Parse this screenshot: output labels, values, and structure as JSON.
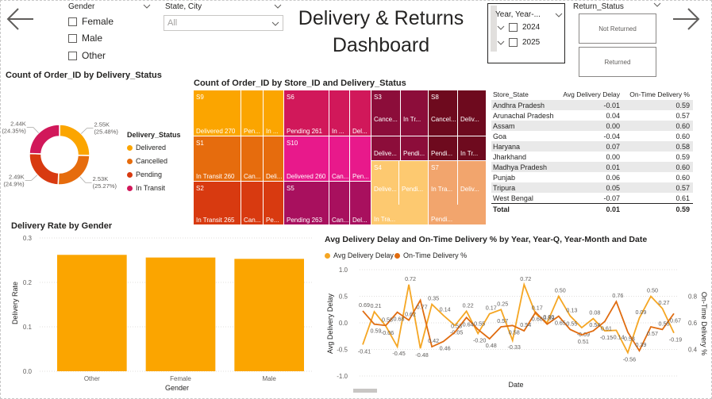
{
  "colors": {
    "delivered": "#FBA500",
    "cancelled": "#E66C0D",
    "pending": "#D83A10",
    "in_transit": "#D1185A",
    "bar": "#FBA500",
    "line1": "#F5A623",
    "line2": "#E06C10"
  },
  "nav": {
    "back_icon": "arrow-left-icon",
    "forward_icon": "arrow-right-icon"
  },
  "gender_slicer": {
    "title": "Gender",
    "options": [
      "Female",
      "Male",
      "Other"
    ]
  },
  "state_slicer": {
    "title": "State, City",
    "value": "All"
  },
  "title": {
    "line1": "Delivery & Returns",
    "line2": "Dashboard"
  },
  "year_slicer": {
    "title": "Year, Year-...",
    "options": [
      "2024",
      "2025"
    ]
  },
  "return_slicer": {
    "title": "Return_Status",
    "options": [
      "Not Returned",
      "Returned"
    ]
  },
  "donut": {
    "title": "Count of Order_ID by Delivery_Status",
    "legend_title": "Delivery_Status",
    "items": [
      {
        "name": "Delivered",
        "count": "2.55K",
        "pct": "(25.48%)",
        "value": 25.48
      },
      {
        "name": "Cancelled",
        "count": "2.53K",
        "pct": "(25.27%)",
        "value": 25.27
      },
      {
        "name": "Pending",
        "count": "2.49K",
        "pct": "(24.9%)",
        "value": 24.9
      },
      {
        "name": "In Transit",
        "count": "2.44K",
        "pct": "(24.35%)",
        "value": 24.35
      }
    ]
  },
  "treemap": {
    "title": "Count of Order_ID by Store_ID and Delivery_Status",
    "stores": [
      {
        "id": "S9",
        "labels": [
          "Delivered 270",
          "Pen...",
          "In ..."
        ]
      },
      {
        "id": "S6",
        "labels": [
          "Pending 261",
          "In ...",
          "Del..."
        ]
      },
      {
        "id": "S3",
        "labels": [
          "Cance...",
          "In Tr...",
          "Delive...",
          "Pendi..."
        ]
      },
      {
        "id": "S8",
        "labels": [
          "Cancel...",
          "Deliv...",
          "Pendi...",
          "In Tr..."
        ]
      },
      {
        "id": "S1",
        "labels": [
          "In Transit 260",
          "Can...",
          "Deli..."
        ]
      },
      {
        "id": "S10",
        "labels": [
          "Delivered 260",
          "Can...",
          "Pen..."
        ]
      },
      {
        "id": "S4",
        "labels": [
          "Delive...",
          "Pendi...",
          "In Tra..."
        ]
      },
      {
        "id": "S7",
        "labels": [
          "In Tra...",
          "Deliv...",
          "Pendi..."
        ]
      },
      {
        "id": "S2",
        "labels": [
          "In Transit 265",
          "Can...",
          "Pe..."
        ]
      },
      {
        "id": "S5",
        "labels": [
          "Pending 263",
          "Can...",
          "Del..."
        ]
      }
    ]
  },
  "table": {
    "headers": [
      "Store_State",
      "Avg Delivery Delay",
      "On-Time Delivery %"
    ],
    "rows": [
      [
        "Andhra Pradesh",
        "-0.01",
        "0.59"
      ],
      [
        "Arunachal Pradesh",
        "0.04",
        "0.57"
      ],
      [
        "Assam",
        "0.00",
        "0.60"
      ],
      [
        "Goa",
        "-0.04",
        "0.60"
      ],
      [
        "Haryana",
        "0.07",
        "0.58"
      ],
      [
        "Jharkhand",
        "0.00",
        "0.59"
      ],
      [
        "Madhya Pradesh",
        "0.01",
        "0.60"
      ],
      [
        "Punjab",
        "0.06",
        "0.60"
      ],
      [
        "Tripura",
        "0.05",
        "0.57"
      ],
      [
        "West Bengal",
        "-0.07",
        "0.61"
      ]
    ],
    "total": [
      "Total",
      "0.01",
      "0.59"
    ]
  },
  "chart_data": [
    {
      "type": "bar",
      "title": "Delivery Rate by Gender",
      "categories": [
        "Other",
        "Female",
        "Male"
      ],
      "values": [
        0.262,
        0.256,
        0.253
      ],
      "xlabel": "Gender",
      "ylabel": "Delivery Rate",
      "ylim": [
        0,
        0.3
      ],
      "yticks": [
        "0.0",
        "0.1",
        "0.2",
        "0.3"
      ]
    },
    {
      "type": "line",
      "title": "Avg Delivery Delay and On-Time Delivery % by Year, Year-Q, Year-Month and Date",
      "xlabel": "Date",
      "ylabel": "Avg Delivery Delay",
      "y2label": "On-Time Delivery %",
      "ylim": [
        -1.0,
        1.0
      ],
      "yticks": [
        "-1.0",
        "-0.5",
        "0.0",
        "0.5",
        "1.0"
      ],
      "y2ticks": [
        "0.4",
        "0.6",
        "0.8"
      ],
      "series": [
        {
          "name": "Avg Delivery Delay",
          "values": [
            -0.41,
            0.21,
            -0.06,
            -0.45,
            0.72,
            -0.48,
            0.35,
            0.14,
            -0.05,
            0.22,
            -0.2,
            0.17,
            0.25,
            -0.33,
            0.72,
            0.17,
            0.0,
            0.5,
            0.13,
            -0.09,
            0.08,
            -0.15,
            -0.14,
            -0.56,
            0.09,
            0.5,
            0.27,
            -0.19
          ]
        },
        {
          "name": "On-Time Delivery %",
          "values": [
            0.69,
            0.59,
            0.58,
            0.68,
            0.62,
            0.77,
            0.42,
            0.46,
            0.53,
            0.64,
            0.55,
            0.48,
            0.57,
            0.58,
            0.54,
            0.68,
            0.59,
            0.65,
            0.55,
            0.51,
            0.54,
            0.61,
            0.76,
            0.53,
            0.39,
            0.57,
            0.55,
            0.67
          ]
        }
      ]
    }
  ]
}
